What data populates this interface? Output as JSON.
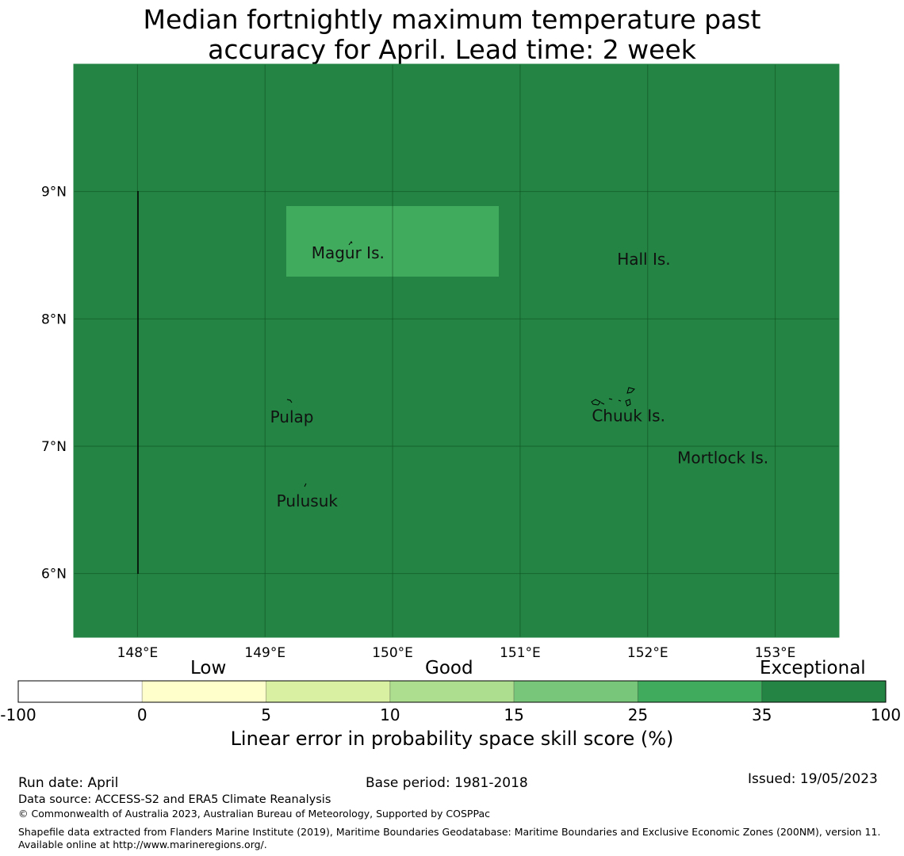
{
  "title": {
    "line1": "Median fortnightly maximum temperature past",
    "line2": "accuracy for April. Lead time: 2 week"
  },
  "map": {
    "lon_labels": [
      "148°E",
      "149°E",
      "150°E",
      "151°E",
      "152°E",
      "153°E"
    ],
    "lat_labels": [
      "9°N",
      "8°N",
      "7°N",
      "6°N"
    ],
    "lon_values": [
      148,
      149,
      150,
      151,
      152,
      153
    ],
    "lat_values": [
      9,
      8,
      7,
      6
    ],
    "extent": {
      "lon": [
        147.5,
        153.5
      ],
      "lat": [
        5.5,
        10.0
      ]
    },
    "background_category": "35 to 100",
    "highlight_cell": {
      "lon": [
        149.17,
        150.83
      ],
      "lat": [
        8.33,
        8.88
      ],
      "category": "25 to 35"
    },
    "meridian_line_lon": 148,
    "places": [
      {
        "name": "Magur Is.",
        "lon": 149.65,
        "lat": 8.52
      },
      {
        "name": "Hall Is.",
        "lon": 151.97,
        "lat": 8.47
      },
      {
        "name": "Pulap",
        "lon": 149.21,
        "lat": 7.23
      },
      {
        "name": "Chuuk Is.",
        "lon": 151.85,
        "lat": 7.24
      },
      {
        "name": "Mortlock Is.",
        "lon": 152.59,
        "lat": 6.91
      },
      {
        "name": "Pulusuk",
        "lon": 149.33,
        "lat": 6.57
      }
    ]
  },
  "colorbar": {
    "category_labels": [
      "Low",
      "Good",
      "Exceptional"
    ],
    "ticks": [
      "-100",
      "0",
      "5",
      "10",
      "15",
      "25",
      "35",
      "100"
    ],
    "colors": [
      "#ffffff",
      "#ffffcc",
      "#d9f0a3",
      "#addd8e",
      "#78c679",
      "#41ab5d",
      "#238443"
    ],
    "title": "Linear error in probability space skill score (%)"
  },
  "footer": {
    "run_date": "Run date: April",
    "base_period": "Base period: 1981-2018",
    "issued": "Issued: 19/05/2023",
    "data_source": "Data source: ACCESS-S2 and ERA5 Climate Reanalysis",
    "copyright": "© Commonwealth of Australia 2023, Australian Bureau of Meteorology, Supported by COSPPac",
    "shapefile": "Shapefile data extracted from Flanders Marine Institute (2019), Maritime Boundaries Geodatabase: Maritime Boundaries and Exclusive Economic Zones (200NM), version 11. Available online at http://www.marineregions.org/."
  }
}
